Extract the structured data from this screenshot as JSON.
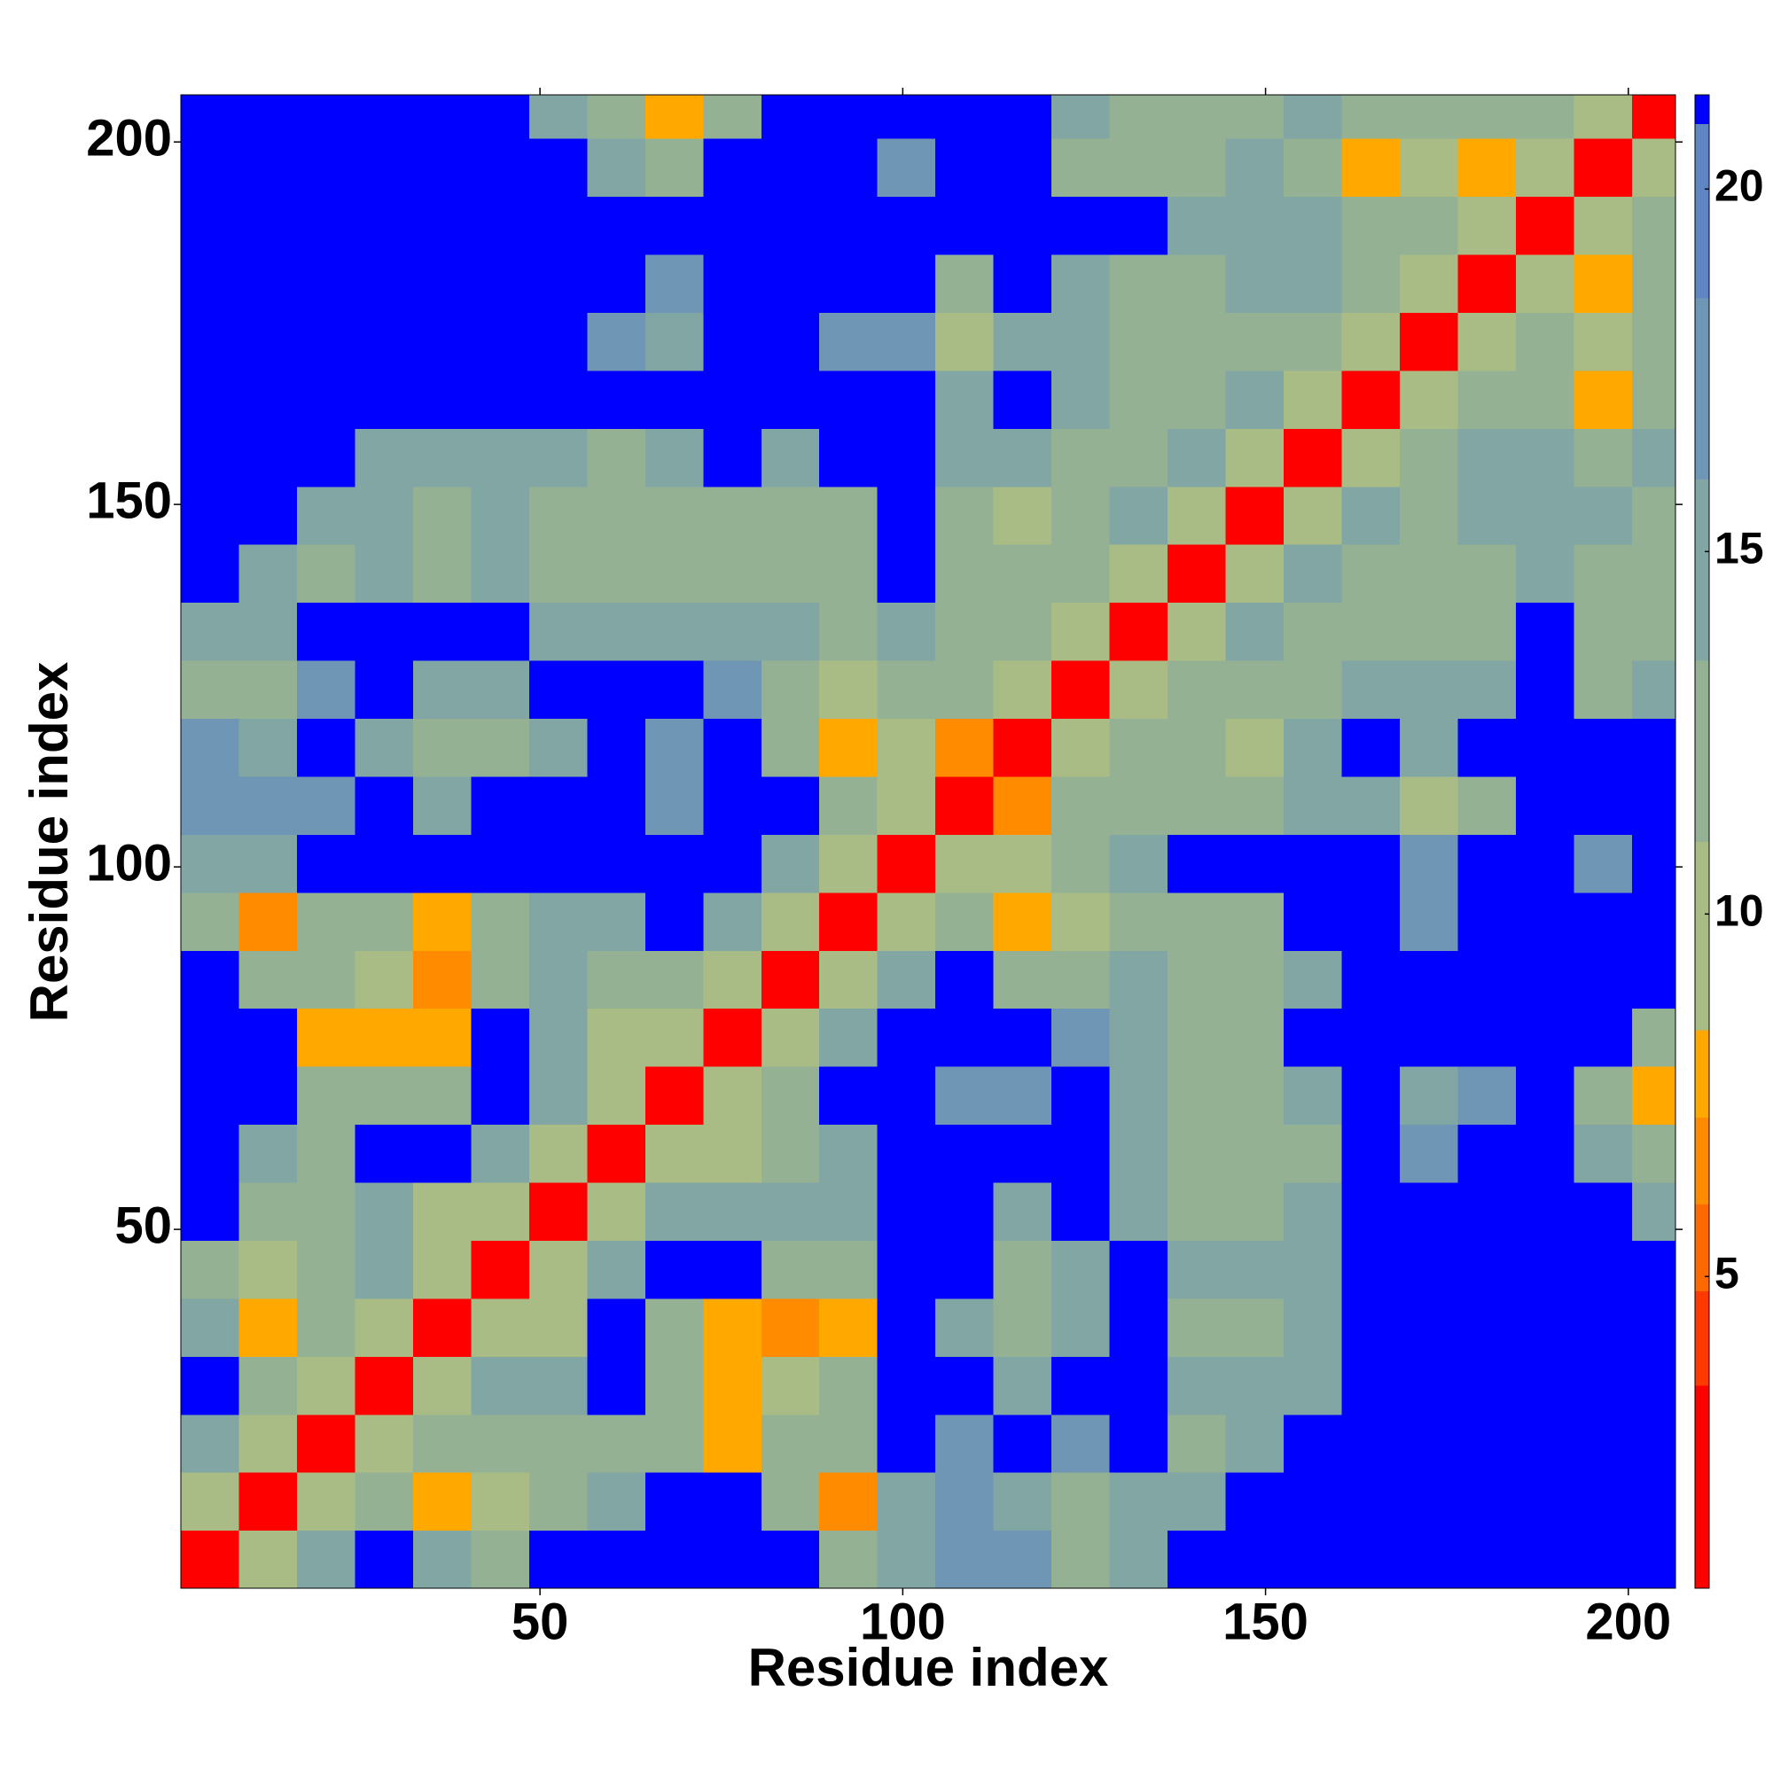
{
  "chart_data": {
    "type": "heatmap",
    "xlabel": "Residue index",
    "ylabel": "Residue index",
    "xbins": [
      0.5,
      8.5,
      16.5,
      24.5,
      32.5,
      40.5,
      48.5,
      56.5,
      64.5,
      72.5,
      80.5,
      88.5,
      96.5,
      104.5,
      112.5,
      120.5,
      128.5,
      136.5,
      144.5,
      152.5,
      160.5,
      168.5,
      176.5,
      184.5,
      192.5,
      200.5,
      206.5
    ],
    "ybins": [
      0.5,
      8.5,
      16.5,
      24.5,
      32.5,
      40.5,
      48.5,
      56.5,
      64.5,
      72.5,
      80.5,
      88.5,
      96.5,
      104.5,
      112.5,
      120.5,
      128.5,
      136.5,
      144.5,
      152.5,
      160.5,
      168.5,
      176.5,
      184.5,
      192.5,
      200.5,
      206.5
    ],
    "z": [
      [
        3,
        10,
        15,
        21,
        14,
        12,
        21,
        21,
        21,
        21,
        21,
        11,
        14,
        17,
        16,
        11,
        15,
        21,
        21,
        21,
        21,
        21,
        21,
        21,
        21,
        21
      ],
      [
        10,
        3,
        10,
        13,
        8,
        9,
        13,
        14,
        21,
        21,
        12,
        7,
        14,
        16,
        15,
        13,
        15,
        15,
        21,
        21,
        21,
        21,
        21,
        21,
        21,
        21
      ],
      [
        15,
        10,
        3,
        10,
        11,
        12,
        11,
        12,
        13,
        8,
        13,
        13,
        21,
        17,
        21,
        16,
        21,
        13,
        15,
        21,
        21,
        21,
        21,
        21,
        21,
        21
      ],
      [
        21,
        13,
        10,
        3,
        10,
        15,
        14,
        21,
        13,
        8,
        9,
        12,
        21,
        21,
        15,
        21,
        21,
        14,
        14,
        15,
        21,
        21,
        21,
        21,
        21,
        21
      ],
      [
        14,
        8,
        11,
        10,
        3,
        10,
        9,
        21,
        12,
        8,
        7,
        8,
        21,
        15,
        13,
        14,
        21,
        13,
        13,
        14,
        21,
        21,
        21,
        21,
        21,
        21
      ],
      [
        12,
        9,
        12,
        15,
        10,
        3,
        10,
        15,
        21,
        21,
        11,
        11,
        21,
        21,
        13,
        14,
        21,
        14,
        14,
        15,
        21,
        21,
        21,
        21,
        21,
        21
      ],
      [
        21,
        13,
        11,
        14,
        9,
        10,
        3,
        10,
        15,
        14,
        14,
        15,
        21,
        21,
        14,
        21,
        14,
        12,
        13,
        14,
        21,
        21,
        21,
        21,
        21,
        14
      ],
      [
        21,
        14,
        12,
        21,
        21,
        15,
        10,
        3,
        10,
        10,
        13,
        14,
        21,
        21,
        21,
        21,
        14,
        12,
        11,
        13,
        21,
        16,
        21,
        21,
        15,
        11
      ],
      [
        21,
        21,
        13,
        13,
        12,
        21,
        15,
        10,
        3,
        10,
        12,
        21,
        21,
        17,
        16,
        21,
        15,
        12,
        12,
        14,
        21,
        15,
        17,
        21,
        13,
        8
      ],
      [
        21,
        21,
        8,
        8,
        8,
        21,
        14,
        10,
        10,
        3,
        10,
        15,
        21,
        21,
        21,
        16,
        15,
        13,
        13,
        21,
        21,
        21,
        21,
        21,
        21,
        13
      ],
      [
        21,
        12,
        13,
        9,
        7,
        11,
        14,
        13,
        12,
        10,
        3,
        10,
        15,
        21,
        11,
        12,
        15,
        12,
        13,
        15,
        21,
        21,
        21,
        21,
        21,
        21
      ],
      [
        11,
        7,
        13,
        12,
        8,
        11,
        15,
        14,
        21,
        15,
        10,
        3,
        10,
        12,
        8,
        9,
        13,
        13,
        13,
        21,
        21,
        17,
        21,
        21,
        21,
        21
      ],
      [
        14,
        14,
        21,
        21,
        21,
        21,
        21,
        21,
        21,
        21,
        15,
        10,
        3,
        10,
        10,
        12,
        14,
        21,
        21,
        21,
        21,
        16,
        21,
        21,
        18,
        21
      ],
      [
        17,
        16,
        17,
        21,
        15,
        21,
        21,
        21,
        17,
        21,
        21,
        12,
        10,
        3,
        6,
        13,
        13,
        13,
        13,
        15,
        14,
        9,
        13,
        21,
        21,
        21
      ],
      [
        16,
        15,
        21,
        15,
        13,
        13,
        14,
        21,
        16,
        21,
        11,
        8,
        10,
        6,
        3,
        10,
        12,
        12,
        9,
        14,
        21,
        15,
        21,
        21,
        21,
        21
      ],
      [
        11,
        13,
        16,
        21,
        14,
        14,
        21,
        21,
        21,
        16,
        12,
        9,
        12,
        13,
        10,
        3,
        10,
        12,
        12,
        13,
        14,
        14,
        15,
        21,
        12,
        14
      ],
      [
        15,
        15,
        21,
        21,
        21,
        21,
        14,
        14,
        15,
        15,
        15,
        13,
        14,
        13,
        12,
        10,
        3,
        10,
        15,
        13,
        12,
        11,
        13,
        21,
        13,
        12
      ],
      [
        21,
        15,
        13,
        14,
        13,
        14,
        12,
        12,
        12,
        13,
        12,
        13,
        21,
        13,
        12,
        12,
        10,
        3,
        10,
        15,
        13,
        13,
        13,
        15,
        12,
        12
      ],
      [
        21,
        21,
        15,
        14,
        13,
        14,
        13,
        11,
        12,
        13,
        13,
        13,
        21,
        13,
        9,
        12,
        15,
        10,
        3,
        10,
        14,
        12,
        14,
        15,
        14,
        12
      ],
      [
        21,
        21,
        21,
        15,
        14,
        15,
        14,
        13,
        14,
        21,
        15,
        21,
        21,
        15,
        14,
        13,
        13,
        15,
        10,
        3,
        10,
        13,
        14,
        14,
        13,
        15
      ],
      [
        21,
        21,
        21,
        21,
        21,
        21,
        21,
        21,
        21,
        21,
        21,
        21,
        21,
        14,
        21,
        14,
        12,
        13,
        14,
        10,
        3,
        10,
        12,
        12,
        8,
        12
      ],
      [
        21,
        21,
        21,
        21,
        21,
        21,
        21,
        16,
        15,
        21,
        21,
        17,
        16,
        9,
        15,
        14,
        11,
        13,
        12,
        13,
        10,
        3,
        10,
        11,
        10,
        13
      ],
      [
        21,
        21,
        21,
        21,
        21,
        21,
        21,
        21,
        17,
        21,
        21,
        21,
        21,
        13,
        21,
        15,
        13,
        13,
        14,
        14,
        12,
        10,
        3,
        10,
        8,
        13
      ],
      [
        21,
        21,
        21,
        21,
        21,
        21,
        21,
        21,
        21,
        21,
        21,
        21,
        21,
        21,
        21,
        21,
        21,
        15,
        15,
        14,
        12,
        11,
        10,
        3,
        10,
        12
      ],
      [
        21,
        21,
        21,
        21,
        21,
        21,
        21,
        15,
        13,
        21,
        21,
        21,
        18,
        21,
        21,
        12,
        13,
        12,
        14,
        13,
        8,
        10,
        8,
        10,
        3,
        10
      ],
      [
        21,
        21,
        21,
        21,
        21,
        21,
        14,
        11,
        8,
        13,
        21,
        21,
        21,
        21,
        21,
        14,
        12,
        12,
        12,
        15,
        12,
        13,
        13,
        12,
        10,
        3
      ]
    ],
    "xlim": [
      0.5,
      206.5
    ],
    "ylim": [
      0.5,
      206.5
    ],
    "xticks": [
      50,
      100,
      150,
      200
    ],
    "yticks": [
      50,
      100,
      150,
      200
    ],
    "zlim": [
      0.7,
      21.3
    ],
    "zticks": [
      5,
      10,
      15,
      20
    ],
    "colorscale": [
      [
        0.7,
        "#ff0000"
      ],
      [
        3.5,
        "#ff3a00"
      ],
      [
        4.8,
        "#ff6a00"
      ],
      [
        6,
        "#ff8c00"
      ],
      [
        7.2,
        "#ffa800"
      ],
      [
        8.4,
        "#a9bc85"
      ],
      [
        11,
        "#94b293"
      ],
      [
        13.5,
        "#82a6a4"
      ],
      [
        16,
        "#6f96b5"
      ],
      [
        18.5,
        "#5f86c2"
      ],
      [
        20.9,
        "#0000ff"
      ]
    ]
  }
}
